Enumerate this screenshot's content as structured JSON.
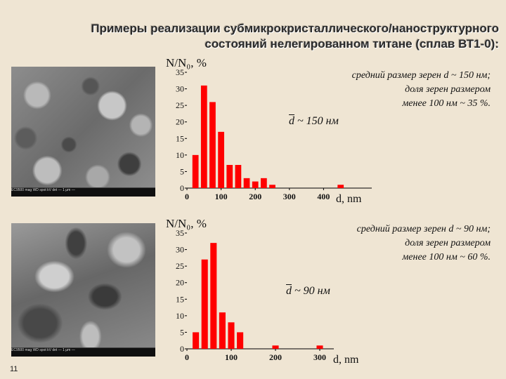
{
  "title_line1": "Примеры реализации субмикрокристаллического/наноструктурного",
  "title_line2": "состояний нелегированном титане (сплав ВТ1-0):",
  "page_number": "11",
  "microscope_bar_1": "EC9500  mag  WD  spot  kV  det  — 1 μm —",
  "microscope_bar_2": "EC9500  mag  WD  spot  kV  det  — 1 μm —",
  "panels": [
    {
      "note_lines": [
        "средний размер зерен d ~ 150 нм;",
        "доля зерен размером",
        "менее 100 нм ~ 35 %."
      ],
      "dbar": "~ 150 нм"
    },
    {
      "note_lines": [
        "средний размер зерен d ~ 90 нм;",
        "доля зерен размером",
        "менее 100 нм ~ 60 %."
      ],
      "dbar": "~ 90 нм"
    }
  ],
  "chart_data": [
    {
      "type": "bar",
      "ylabel": "N/N₀, %",
      "xlabel": "d, nm",
      "ylim": [
        0,
        35
      ],
      "yticks": [
        0,
        5,
        10,
        15,
        20,
        25,
        30,
        35
      ],
      "xlim": [
        0,
        500
      ],
      "xticks": [
        0,
        100,
        200,
        300,
        400
      ],
      "bin_width": 25,
      "x": [
        25,
        50,
        75,
        100,
        125,
        150,
        175,
        200,
        225,
        250,
        275,
        300,
        325,
        350,
        375,
        400,
        425,
        450,
        475
      ],
      "values": [
        10,
        31,
        26,
        17,
        7,
        7,
        3,
        2,
        3,
        1,
        0,
        0,
        0,
        0,
        0,
        0,
        0,
        1,
        0
      ],
      "bar_color": "#ff0000"
    },
    {
      "type": "bar",
      "ylabel": "N/N₀, %",
      "xlabel": "d, nm",
      "ylim": [
        0,
        35
      ],
      "yticks": [
        0,
        5,
        10,
        15,
        20,
        25,
        30,
        35
      ],
      "xlim": [
        0,
        300
      ],
      "xticks": [
        0,
        100,
        200,
        300
      ],
      "bin_width": 20,
      "x": [
        20,
        40,
        60,
        80,
        100,
        120,
        200,
        300
      ],
      "values": [
        5,
        27,
        32,
        11,
        8,
        5,
        1,
        1
      ],
      "bar_color": "#ff0000"
    }
  ]
}
